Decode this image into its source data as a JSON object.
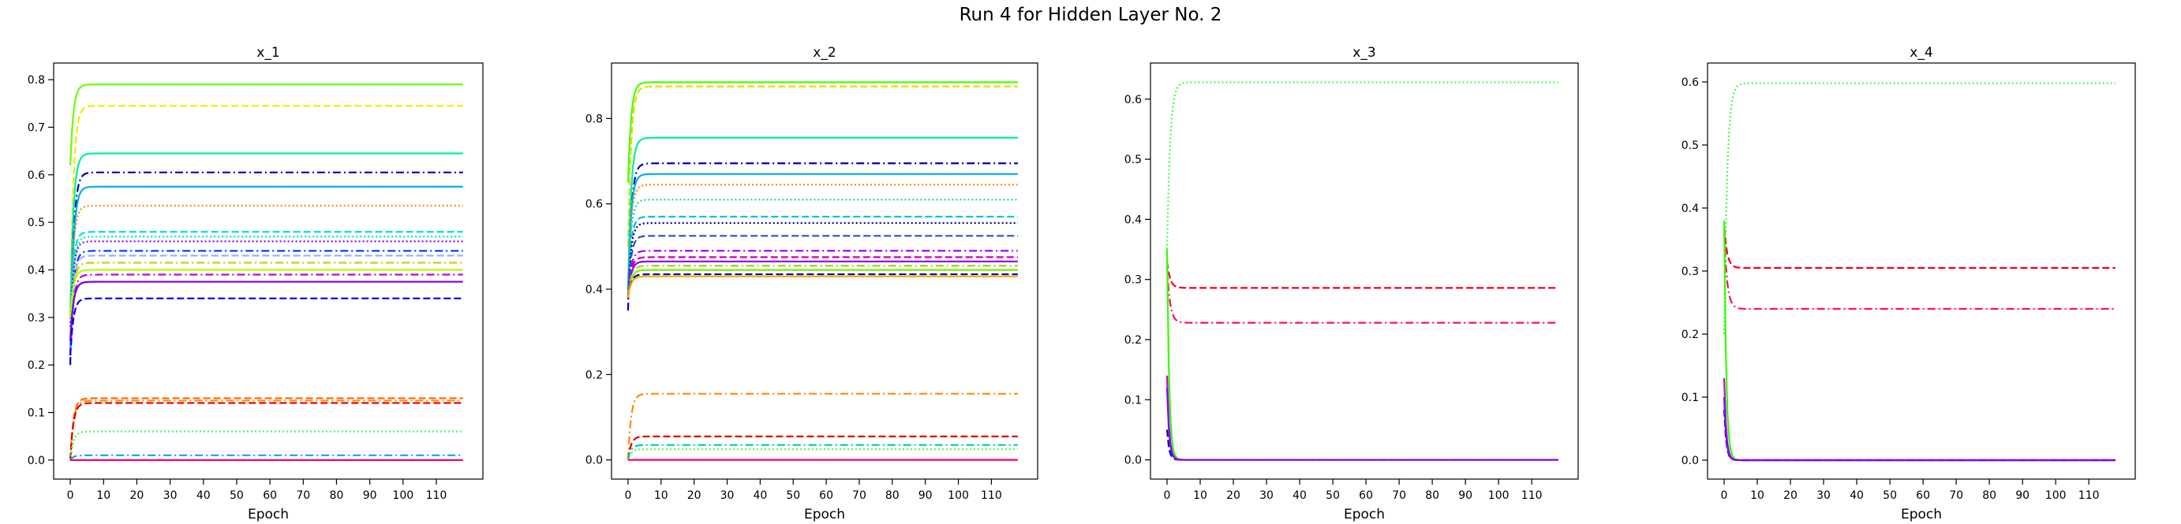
{
  "figure": {
    "suptitle": "Run 4 for Hidden Layer No. 2"
  },
  "chart_data": [
    {
      "type": "line",
      "title": "x_1",
      "xlabel": "Epoch",
      "ylabel": "",
      "xlim": [
        -5,
        124
      ],
      "ylim": [
        -0.04,
        0.835
      ],
      "xticks": [
        0,
        10,
        20,
        30,
        40,
        50,
        60,
        70,
        80,
        90,
        100,
        110
      ],
      "yticks": [
        0.0,
        0.1,
        0.2,
        0.3,
        0.4,
        0.5,
        0.6,
        0.7,
        0.8
      ],
      "x_range": [
        0,
        118
      ],
      "series": [
        {
          "color": "#66ff00",
          "dash": "solid",
          "start": 0.62,
          "final": 0.79
        },
        {
          "color": "#eeee00",
          "dash": "dashed",
          "start": 0.3,
          "final": 0.745
        },
        {
          "color": "#00f09a",
          "dash": "solid",
          "start": 0.3,
          "final": 0.645
        },
        {
          "color": "#0000bb",
          "dash": "dashdot",
          "start": 0.2,
          "final": 0.605
        },
        {
          "color": "#00b0f0",
          "dash": "solid",
          "start": 0.22,
          "final": 0.575
        },
        {
          "color": "#ff8c00",
          "dash": "dotted",
          "start": 0.28,
          "final": 0.535
        },
        {
          "color": "#00e0e0",
          "dash": "dashed",
          "start": 0.3,
          "final": 0.48
        },
        {
          "color": "#00f09a",
          "dash": "dotted",
          "start": 0.25,
          "final": 0.47
        },
        {
          "color": "#8a00ff",
          "dash": "dotted",
          "start": 0.28,
          "final": 0.46
        },
        {
          "color": "#0040ff",
          "dash": "dashdot",
          "start": 0.22,
          "final": 0.44
        },
        {
          "color": "#aaaaff",
          "dash": "dashed",
          "start": 0.25,
          "final": 0.43
        },
        {
          "color": "#cccc00",
          "dash": "dashdot",
          "start": 0.26,
          "final": 0.415
        },
        {
          "color": "#b0ff00",
          "dash": "solid",
          "start": 0.3,
          "final": 0.4
        },
        {
          "color": "#cc00cc",
          "dash": "dashdot",
          "start": 0.22,
          "final": 0.39
        },
        {
          "color": "#7000ee",
          "dash": "solid",
          "start": 0.25,
          "final": 0.375
        },
        {
          "color": "#0000ee",
          "dash": "dashed",
          "start": 0.22,
          "final": 0.34
        },
        {
          "color": "#ff6600",
          "dash": "dashed",
          "start": 0.0,
          "final": 0.13
        },
        {
          "color": "#ff8c00",
          "dash": "dashdot",
          "start": 0.0,
          "final": 0.125
        },
        {
          "color": "#dd0000",
          "dash": "dashed",
          "start": 0.0,
          "final": 0.12
        },
        {
          "color": "#44ff44",
          "dash": "dotted",
          "start": 0.0,
          "final": 0.06
        },
        {
          "color": "#00aaff",
          "dash": "dashdot",
          "start": 0.0,
          "final": 0.01
        },
        {
          "color": "#ff0066",
          "dash": "solid",
          "start": 0.0,
          "final": 0.0
        }
      ]
    },
    {
      "type": "line",
      "title": "x_2",
      "xlabel": "Epoch",
      "ylabel": "",
      "xlim": [
        -5,
        124
      ],
      "ylim": [
        -0.045,
        0.93
      ],
      "xticks": [
        0,
        10,
        20,
        30,
        40,
        50,
        60,
        70,
        80,
        90,
        100,
        110
      ],
      "yticks": [
        0.0,
        0.2,
        0.4,
        0.6,
        0.8
      ],
      "x_range": [
        0,
        118
      ],
      "series": [
        {
          "color": "#44ff00",
          "dash": "solid",
          "start": 0.65,
          "final": 0.885
        },
        {
          "color": "#e0e000",
          "dash": "dashed",
          "start": 0.5,
          "final": 0.875
        },
        {
          "color": "#00f0a0",
          "dash": "solid",
          "start": 0.4,
          "final": 0.755
        },
        {
          "color": "#0000bb",
          "dash": "dashdot",
          "start": 0.35,
          "final": 0.695
        },
        {
          "color": "#00b0f0",
          "dash": "solid",
          "start": 0.4,
          "final": 0.67
        },
        {
          "color": "#ff8c00",
          "dash": "dotted",
          "start": 0.4,
          "final": 0.645
        },
        {
          "color": "#00e0c0",
          "dash": "dotted",
          "start": 0.4,
          "final": 0.61
        },
        {
          "color": "#00c0e0",
          "dash": "dashed",
          "start": 0.4,
          "final": 0.57
        },
        {
          "color": "#000088",
          "dash": "dotted",
          "start": 0.38,
          "final": 0.555
        },
        {
          "color": "#3050c0",
          "dash": "dashed",
          "start": 0.38,
          "final": 0.525
        },
        {
          "color": "#aa00ff",
          "dash": "dashdot",
          "start": 0.38,
          "final": 0.49
        },
        {
          "color": "#cc00aa",
          "dash": "dashed",
          "start": 0.38,
          "final": 0.475
        },
        {
          "color": "#8800ff",
          "dash": "solid",
          "start": 0.38,
          "final": 0.465
        },
        {
          "color": "#99dd00",
          "dash": "dashdot",
          "start": 0.38,
          "final": 0.455
        },
        {
          "color": "#77ee00",
          "dash": "solid",
          "start": 0.38,
          "final": 0.445
        },
        {
          "color": "#0000cc",
          "dash": "dashed",
          "start": 0.38,
          "final": 0.435
        },
        {
          "color": "#ffaa00",
          "dash": "solid",
          "start": 0.38,
          "final": 0.43
        },
        {
          "color": "#ff8c00",
          "dash": "dashdot",
          "start": 0.0,
          "final": 0.155
        },
        {
          "color": "#dd0000",
          "dash": "dashed",
          "start": 0.0,
          "final": 0.055
        },
        {
          "color": "#00ccaa",
          "dash": "dashdot",
          "start": 0.0,
          "final": 0.035
        },
        {
          "color": "#55ff55",
          "dash": "dotted",
          "start": 0.0,
          "final": 0.025
        },
        {
          "color": "#ff0066",
          "dash": "solid",
          "start": 0.0,
          "final": 0.0
        }
      ]
    },
    {
      "type": "line",
      "title": "x_3",
      "xlabel": "Epoch",
      "ylabel": "",
      "xlim": [
        -5,
        124
      ],
      "ylim": [
        -0.032,
        0.66
      ],
      "xticks": [
        0,
        10,
        20,
        30,
        40,
        50,
        60,
        70,
        80,
        90,
        100,
        110
      ],
      "yticks": [
        0.0,
        0.1,
        0.2,
        0.3,
        0.4,
        0.5,
        0.6
      ],
      "x_range": [
        0,
        118
      ],
      "series": [
        {
          "color": "#44ff44",
          "dash": "dotted",
          "start": 0.35,
          "final": 0.628
        },
        {
          "color": "#ee0022",
          "dash": "dashed",
          "start": 0.33,
          "final": 0.286
        },
        {
          "color": "#ff1155",
          "dash": "dashdot",
          "start": 0.32,
          "final": 0.228
        },
        {
          "color": "#33ff00",
          "dash": "solid",
          "start": 0.35,
          "final": 0.0
        },
        {
          "color": "#cc00cc",
          "dash": "solid",
          "start": 0.14,
          "final": 0.0
        },
        {
          "color": "#0000cc",
          "dash": "dashed",
          "start": 0.05,
          "final": 0.0
        },
        {
          "color": "#8800ff",
          "dash": "solid",
          "start": 0.12,
          "final": 0.0
        }
      ]
    },
    {
      "type": "line",
      "title": "x_4",
      "xlabel": "Epoch",
      "ylabel": "",
      "xlim": [
        -5,
        124
      ],
      "ylim": [
        -0.03,
        0.63
      ],
      "xticks": [
        0,
        10,
        20,
        30,
        40,
        50,
        60,
        70,
        80,
        90,
        100,
        110
      ],
      "yticks": [
        0.0,
        0.1,
        0.2,
        0.3,
        0.4,
        0.5,
        0.6
      ],
      "x_range": [
        0,
        118
      ],
      "series": [
        {
          "color": "#44ff44",
          "dash": "dotted",
          "start": 0.2,
          "final": 0.598
        },
        {
          "color": "#ee0022",
          "dash": "dashed",
          "start": 0.37,
          "final": 0.305
        },
        {
          "color": "#ff1155",
          "dash": "dashdot",
          "start": 0.36,
          "final": 0.24
        },
        {
          "color": "#33ff00",
          "dash": "solid",
          "start": 0.38,
          "final": 0.0
        },
        {
          "color": "#cc00cc",
          "dash": "solid",
          "start": 0.13,
          "final": 0.0
        },
        {
          "color": "#0000cc",
          "dash": "dashed",
          "start": 0.08,
          "final": 0.0
        },
        {
          "color": "#8800ff",
          "dash": "solid",
          "start": 0.1,
          "final": 0.0
        }
      ]
    }
  ]
}
